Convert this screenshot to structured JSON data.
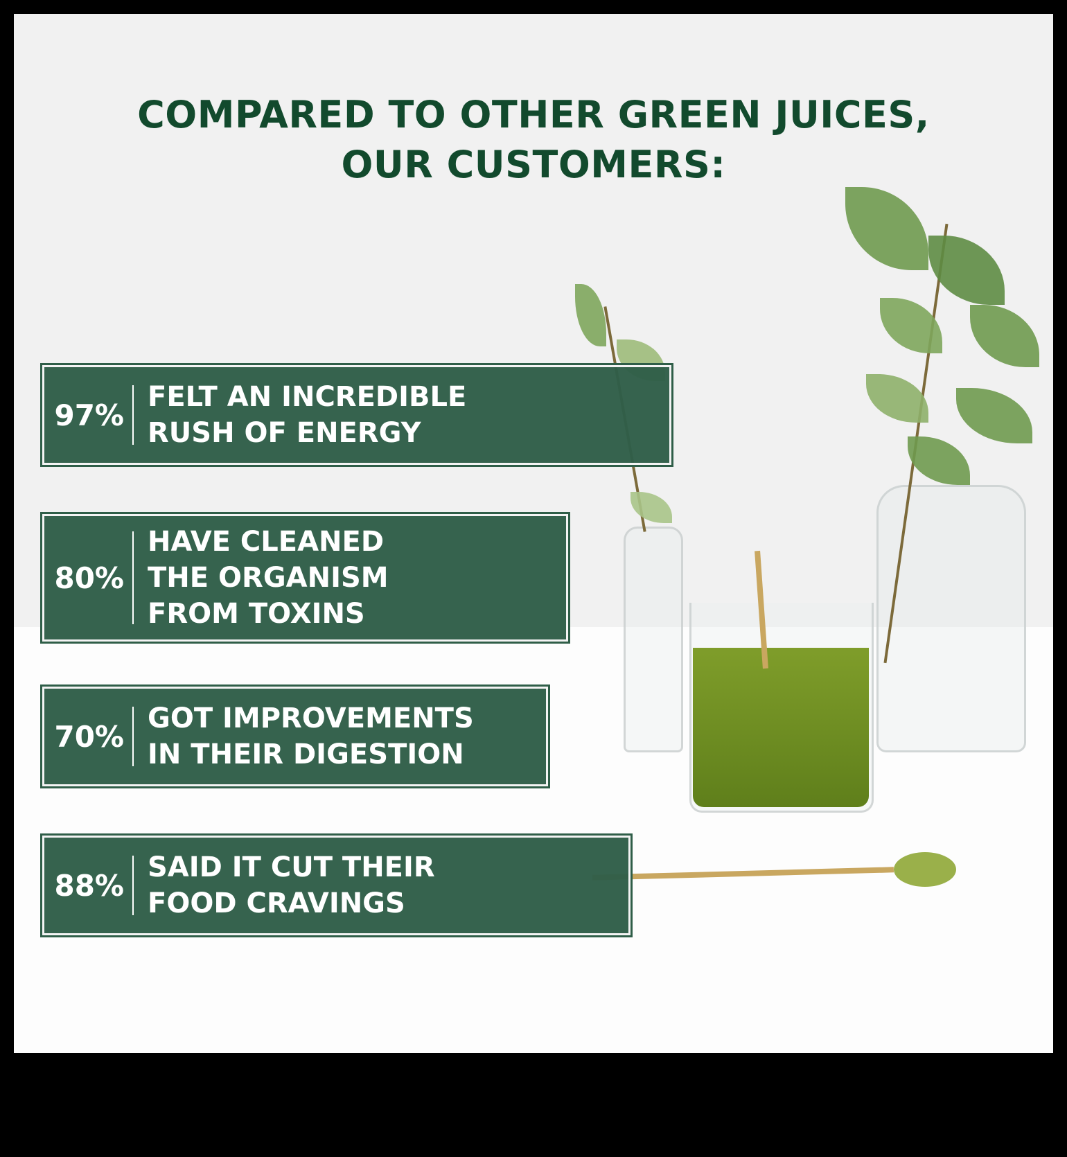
{
  "title": {
    "line1": "COMPARED TO OTHER GREEN JUICES,",
    "line2": "OUR CUSTOMERS:"
  },
  "stats": [
    {
      "percent": "97%",
      "lines": [
        "FELT AN INCREDIBLE",
        "RUSH OF ENERGY"
      ]
    },
    {
      "percent": "80%",
      "lines": [
        "HAVE CLEANED",
        "THE ORGANISM",
        "FROM TOXINS"
      ]
    },
    {
      "percent": "70%",
      "lines": [
        "GOT IMPROVEMENTS",
        "IN THEIR DIGESTION"
      ]
    },
    {
      "percent": "88%",
      "lines": [
        "SAID IT CUT THEIR",
        "FOOD CRAVINGS"
      ]
    }
  ],
  "colors": {
    "title": "#124a2d",
    "box": "#2f5e48",
    "text": "#ffffff"
  }
}
